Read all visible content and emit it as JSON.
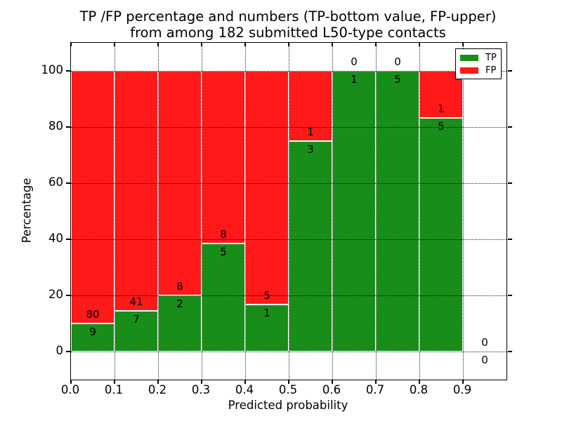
{
  "figure": {
    "title_line1": "TP /FP percentage and numbers (TP-bottom value, FP-upper)",
    "title_line2": "from among 182 submitted L50-type contacts",
    "xlabel": "Predicted probability",
    "ylabel": "Percentage"
  },
  "legend": {
    "entries": [
      {
        "label": "TP",
        "color": "#198d19"
      },
      {
        "label": "FP",
        "color": "#ff1919"
      }
    ]
  },
  "chart_data": {
    "type": "bar",
    "stacked": true,
    "normalized": "percent_of_bin_total",
    "title": "TP /FP percentage and numbers (TP-bottom value, FP-upper) from among 182 submitted L50-type contacts",
    "xlabel": "Predicted probability",
    "ylabel": "Percentage",
    "total_contacts": 182,
    "bin_starts": [
      0.0,
      0.1,
      0.2,
      0.3,
      0.4,
      0.5,
      0.6,
      0.7,
      0.8,
      0.9
    ],
    "bin_width": 0.1,
    "x_tick_labels": [
      "0.0",
      "0.1",
      "0.2",
      "0.3",
      "0.4",
      "0.5",
      "0.6",
      "0.7",
      "0.8",
      "0.9"
    ],
    "y_ticks": [
      0,
      20,
      40,
      60,
      80,
      100
    ],
    "y_tick_labels": [
      "0",
      "20",
      "40",
      "60",
      "80",
      "100"
    ],
    "xlim": [
      0.0,
      1.0
    ],
    "ylim": [
      -10,
      110
    ],
    "grid": true,
    "grid_style": "dotted",
    "legend_position": "upper right",
    "series": [
      {
        "name": "TP",
        "color": "#198d19",
        "counts": [
          9,
          7,
          2,
          5,
          1,
          3,
          1,
          5,
          5,
          0
        ]
      },
      {
        "name": "FP",
        "color": "#ff1919",
        "counts": [
          80,
          41,
          8,
          8,
          5,
          1,
          0,
          0,
          1,
          0
        ]
      }
    ],
    "tp_percent_per_bin": [
      10.11,
      14.58,
      20.0,
      38.46,
      16.67,
      75.0,
      100.0,
      100.0,
      83.33,
      0.0
    ]
  }
}
